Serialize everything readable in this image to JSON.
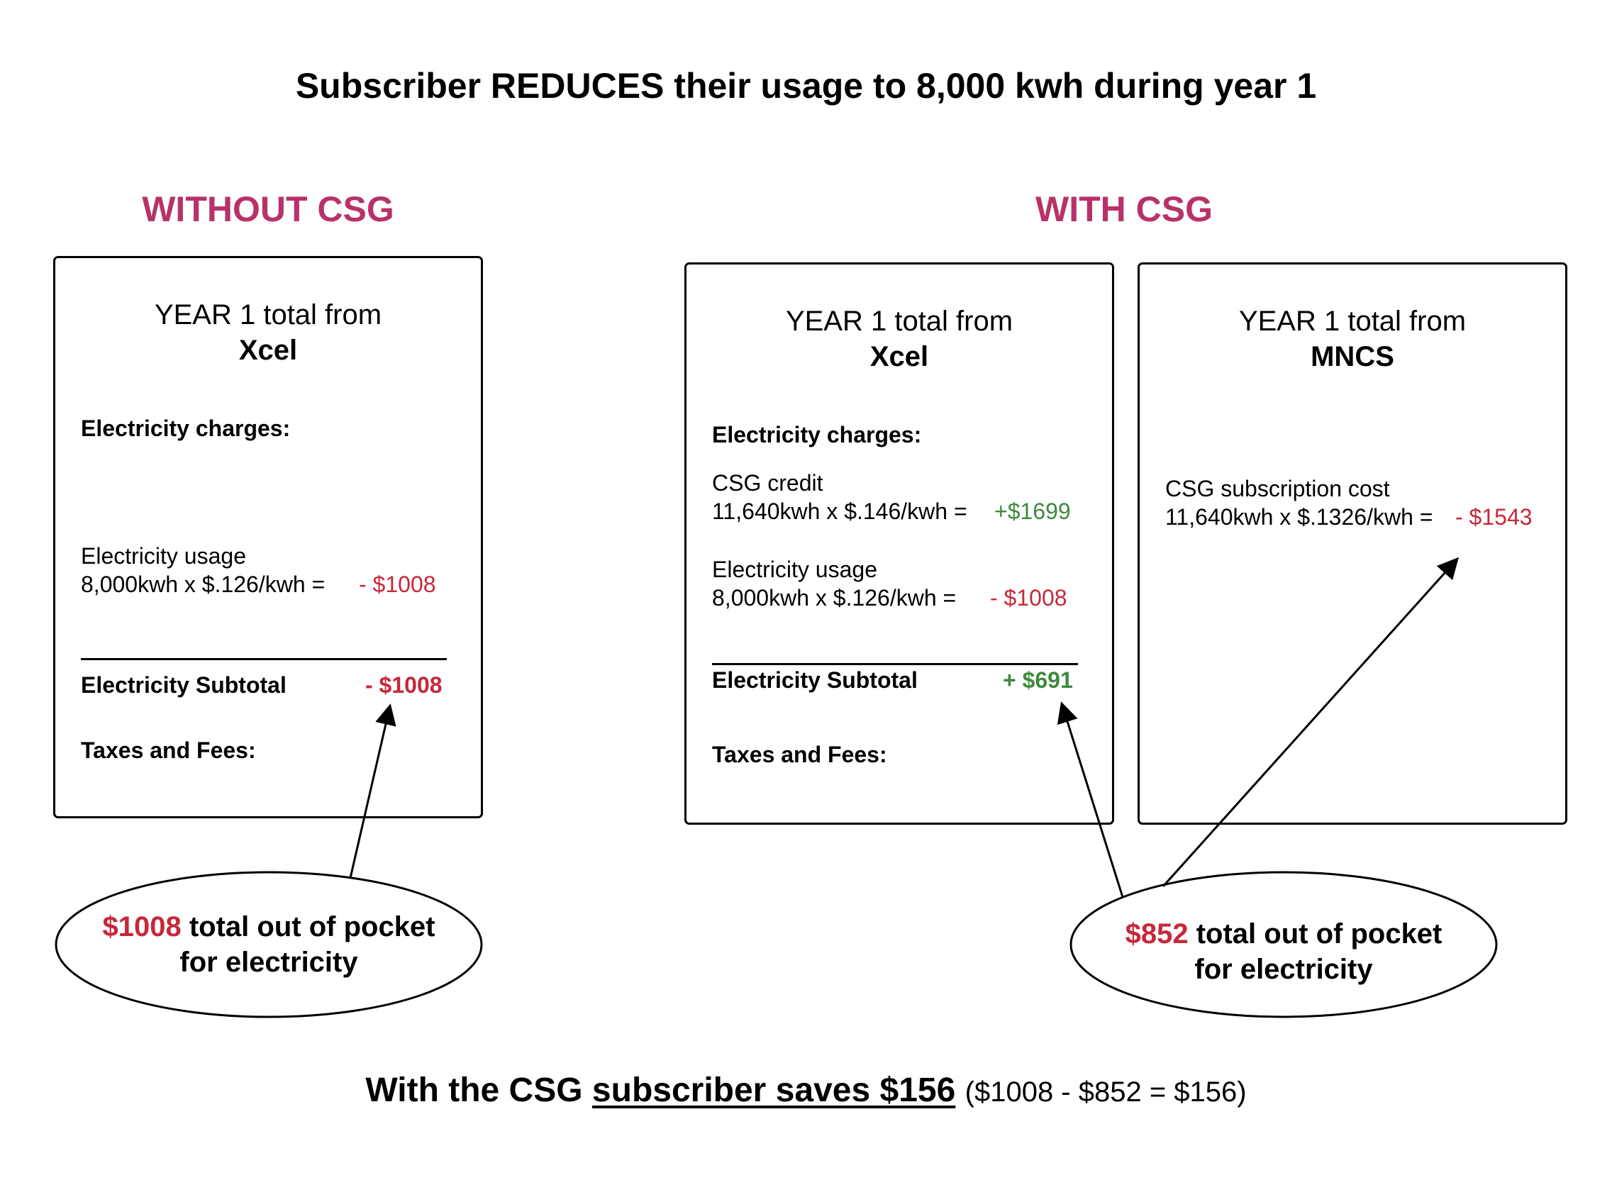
{
  "title": "Subscriber REDUCES their usage to 8,000 kwh during year 1",
  "colors": {
    "section": "#b8326a",
    "negative": "#c6283a",
    "positive": "#3f8a3d"
  },
  "without": {
    "heading": "WITHOUT CSG",
    "box": {
      "header_line1": "YEAR 1 total from",
      "header_org": "Xcel",
      "charges_label": "Electricity charges:",
      "usage_label": "Electricity usage",
      "usage_calc": "8,000kwh x $.126/kwh =",
      "usage_value": "- $1008",
      "subtotal_label": "Electricity Subtotal",
      "subtotal_value": "- $1008",
      "taxes_label": "Taxes and Fees:"
    },
    "callout": {
      "amount": "$1008",
      "text1": "total out of pocket",
      "text2": "for electricity"
    }
  },
  "with": {
    "heading": "WITH CSG",
    "xcel_box": {
      "header_line1": "YEAR 1 total from",
      "header_org": "Xcel",
      "charges_label": "Electricity charges:",
      "credit_label": "CSG credit",
      "credit_calc": "11,640kwh x $.146/kwh =",
      "credit_value": "+$1699",
      "usage_label": "Electricity usage",
      "usage_calc": "8,000kwh x $.126/kwh =",
      "usage_value": "- $1008",
      "subtotal_label": "Electricity Subtotal",
      "subtotal_value": "+ $691",
      "taxes_label": "Taxes and Fees:"
    },
    "mncs_box": {
      "header_line1": "YEAR 1 total from",
      "header_org": "MNCS",
      "sub_label": "CSG subscription cost",
      "sub_calc": "11,640kwh x $.1326/kwh =",
      "sub_value": "- $1543"
    },
    "callout": {
      "amount": "$852",
      "text1": "total out of pocket",
      "text2": "for electricity"
    }
  },
  "footer": {
    "lead": "With the CSG",
    "saves": "subscriber saves $156",
    "calc": "($1008 - $852 = $156)"
  }
}
